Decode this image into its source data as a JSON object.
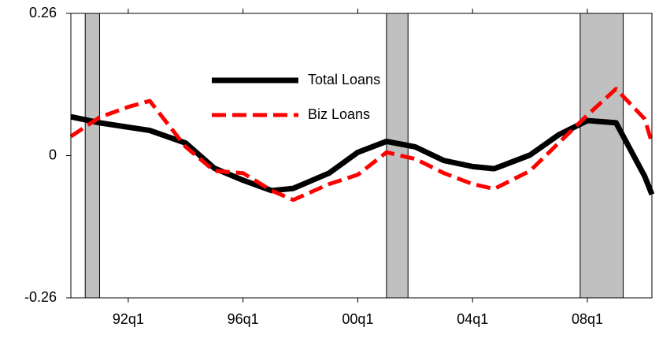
{
  "chart_data": {
    "type": "line",
    "x": [
      1990,
      1991,
      1992,
      1992.75,
      1994,
      1995,
      1996,
      1997,
      1997.75,
      1999,
      2000,
      2001,
      2002,
      2003,
      2004,
      2004.75,
      2006,
      2007,
      2008,
      2009,
      2010,
      2010.25
    ],
    "series": [
      {
        "name": "Total Loans",
        "color": "#000000",
        "dash": false,
        "values": [
          0.071,
          0.06,
          0.052,
          0.046,
          0.023,
          -0.023,
          -0.045,
          -0.064,
          -0.06,
          -0.032,
          0.006,
          0.026,
          0.016,
          -0.009,
          -0.02,
          -0.024,
          0.001,
          0.038,
          0.064,
          0.06,
          -0.038,
          -0.071
        ]
      },
      {
        "name": "Biz Loans",
        "color": "#ff0000",
        "dash": true,
        "values": [
          0.035,
          0.07,
          0.089,
          0.1,
          0.016,
          -0.028,
          -0.032,
          -0.064,
          -0.081,
          -0.052,
          -0.035,
          0.006,
          -0.006,
          -0.032,
          -0.052,
          -0.061,
          -0.028,
          0.023,
          0.074,
          0.122,
          0.067,
          0.023
        ]
      }
    ],
    "shaded_regions": [
      [
        1990.5,
        1991.0
      ],
      [
        2001.0,
        2001.75
      ],
      [
        2007.75,
        2009.25
      ]
    ],
    "xlim": [
      1990,
      2010.25
    ],
    "xticks": [
      {
        "value": 1992,
        "label": "92q1"
      },
      {
        "value": 1996,
        "label": "96q1"
      },
      {
        "value": 2000,
        "label": "00q1"
      },
      {
        "value": 2004,
        "label": "04q1"
      },
      {
        "value": 2008,
        "label": "08q1"
      }
    ],
    "ylim": [
      -0.26,
      0.26
    ],
    "yticks": [
      -0.26,
      0,
      0.26
    ],
    "legend": "upper center"
  }
}
